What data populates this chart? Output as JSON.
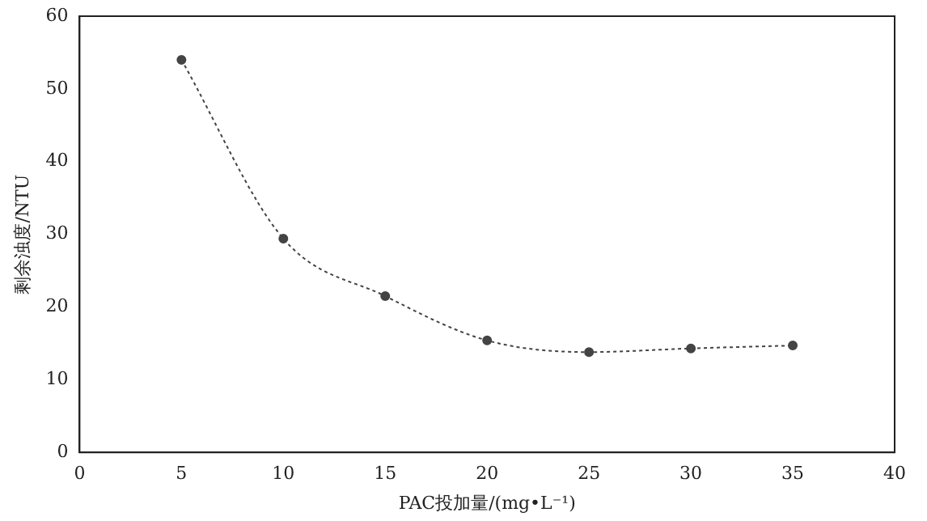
{
  "chart_data": {
    "type": "line",
    "xlabel": "PAC投加量/(mg•L⁻¹)",
    "ylabel": "剩余浊度/NTU",
    "x": [
      5,
      10,
      15,
      20,
      25,
      30,
      35
    ],
    "series": [
      {
        "color": "#444444",
        "values": [
          54,
          29.4,
          21.5,
          15.4,
          13.8,
          14.3,
          14.7
        ]
      }
    ],
    "xlim": [
      0,
      40
    ],
    "xticks": [
      0,
      5,
      10,
      15,
      20,
      25,
      30,
      35,
      40
    ],
    "ylim": [
      0,
      60
    ],
    "yticks": [
      0,
      10,
      20,
      30,
      40,
      50,
      60
    ],
    "grid": false,
    "legend": false,
    "marker": "circle",
    "line_style": "dotted"
  }
}
